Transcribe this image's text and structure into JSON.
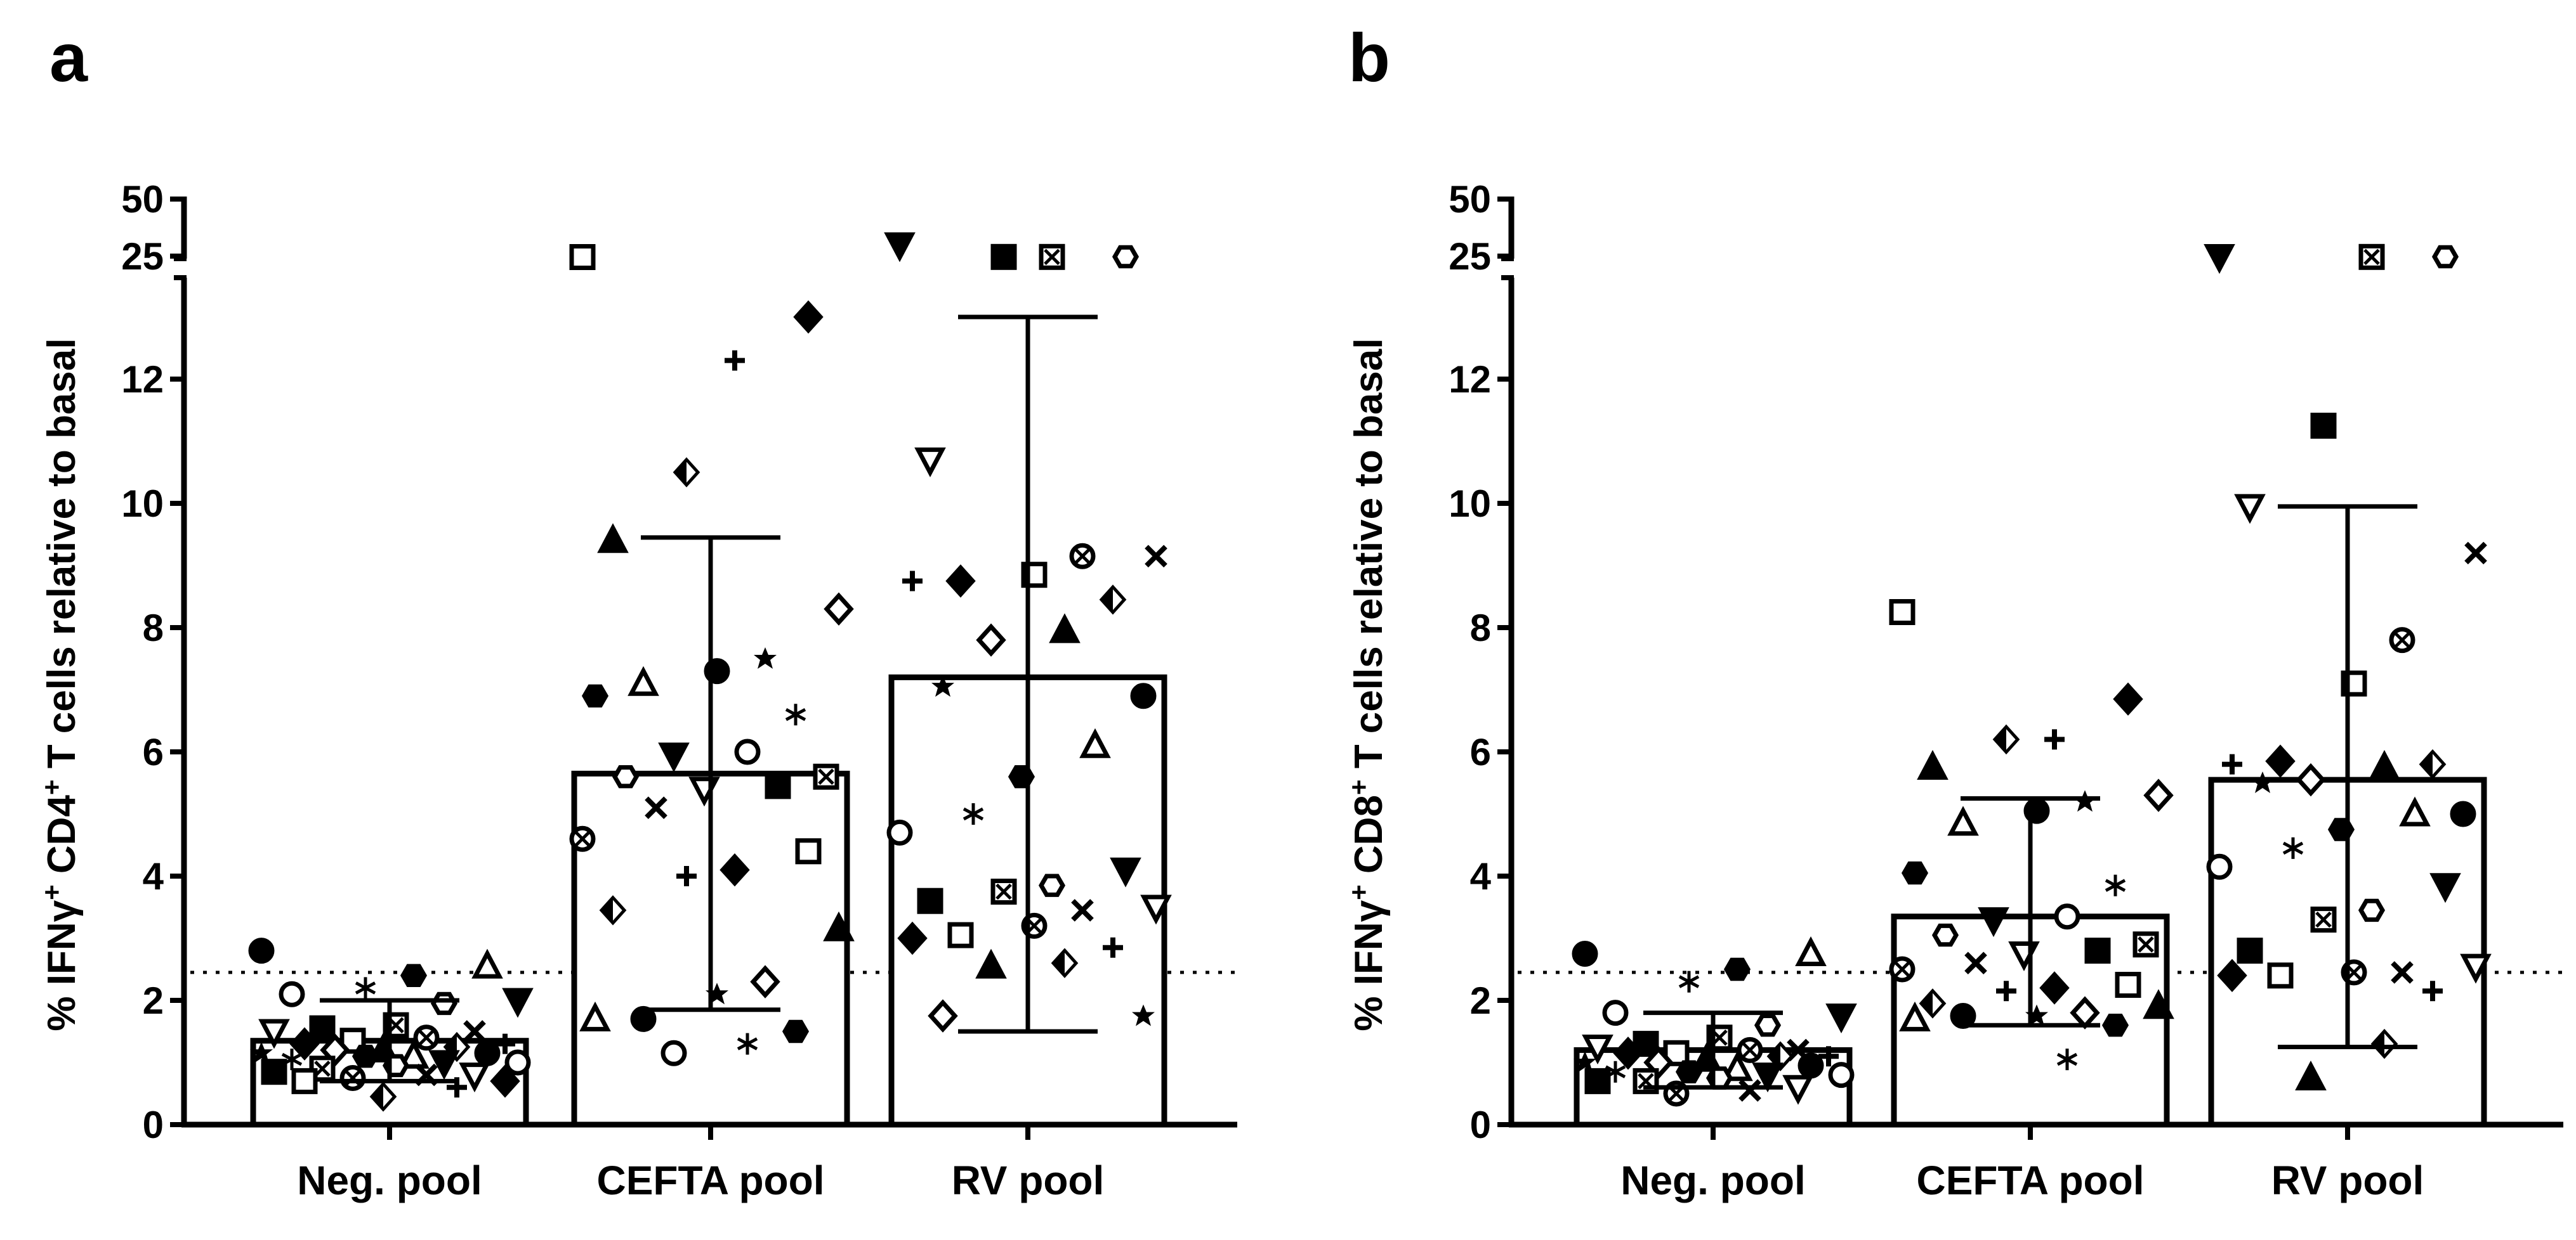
{
  "chart_data": [
    {
      "panel": "a",
      "type": "bar",
      "categories": [
        "Neg. pool",
        "CEFTA pool",
        "RV pool"
      ],
      "ylabel_parts": [
        "% IFNγ",
        "+",
        " CD4",
        "+",
        " T cells relative to basal"
      ],
      "yticks_lower": [
        "0",
        "2",
        "4",
        "6",
        "8",
        "10",
        "12"
      ],
      "yticks_upper": [
        "25",
        "50"
      ],
      "ylim_lower": [
        0,
        13
      ],
      "ylim_upper": [
        25,
        50
      ],
      "threshold": 2.45,
      "means": [
        1.35,
        5.65,
        7.2
      ],
      "sd_high": [
        2.0,
        9.45,
        13.0
      ],
      "sd_low": [
        0.7,
        1.85,
        1.5
      ],
      "points": [
        [
          2.8,
          2.55,
          2.4,
          2.2,
          2.1,
          2.0,
          1.95,
          1.6,
          1.55,
          1.5,
          1.5,
          1.4,
          1.35,
          1.3,
          1.3,
          1.25,
          1.2,
          1.2,
          1.15,
          1.15,
          1.1,
          1.1,
          1.05,
          1.0,
          1.0,
          0.95,
          0.9,
          0.85,
          0.8,
          0.8,
          0.75,
          0.7,
          0.7,
          0.6,
          0.45
        ],
        [
          22,
          13,
          12.3,
          10.5,
          9.4,
          8.3,
          7.5,
          7.3,
          7.1,
          6.9,
          6.6,
          6.0,
          5.95,
          5.6,
          5.6,
          5.45,
          5.4,
          5.1,
          4.6,
          4.4,
          4.1,
          4.0,
          3.45,
          3.15,
          2.3,
          2.1,
          1.7,
          1.7,
          1.5,
          1.3,
          1.15
        ],
        [
          30,
          23,
          22.5,
          22.5,
          10.7,
          9.15,
          9.15,
          8.85,
          8.75,
          8.75,
          8.45,
          7.95,
          7.8,
          7.05,
          6.9,
          6.1,
          5.6,
          5.0,
          4.7,
          4.1,
          3.85,
          3.75,
          3.6,
          3.5,
          3.45,
          3.2,
          3.05,
          3.0,
          2.85,
          2.6,
          2.55,
          1.75,
          1.75
        ]
      ]
    },
    {
      "panel": "b",
      "type": "bar",
      "categories": [
        "Neg. pool",
        "CEFTA pool",
        "RV pool"
      ],
      "ylabel_parts": [
        "% IFNγ",
        "+",
        " CD8",
        "+",
        " T cells relative to basal"
      ],
      "yticks_lower": [
        "0",
        "2",
        "4",
        "6",
        "8",
        "10",
        "12"
      ],
      "yticks_upper": [
        "25",
        "50"
      ],
      "ylim_lower": [
        0,
        13
      ],
      "ylim_upper": [
        25,
        50
      ],
      "threshold": 2.45,
      "means": [
        1.2,
        3.35,
        5.55
      ],
      "sd_high": [
        1.8,
        5.25,
        9.95
      ],
      "sd_low": [
        0.6,
        1.6,
        1.25
      ],
      "points": [
        [
          2.75,
          2.75,
          2.5,
          2.3,
          1.8,
          1.75,
          1.6,
          1.4,
          1.3,
          1.25,
          1.2,
          1.2,
          1.15,
          1.15,
          1.1,
          1.1,
          1.05,
          1.0,
          1.0,
          0.95,
          0.9,
          0.85,
          0.85,
          0.8,
          0.8,
          0.75,
          0.7,
          0.7,
          0.6,
          0.55,
          0.5
        ],
        [
          8.25,
          6.85,
          6.2,
          6.2,
          5.75,
          5.3,
          5.2,
          5.05,
          4.85,
          4.05,
          3.85,
          3.35,
          3.3,
          3.05,
          2.9,
          2.8,
          2.75,
          2.6,
          2.5,
          2.25,
          2.2,
          2.15,
          1.95,
          1.9,
          1.8,
          1.75,
          1.75,
          1.7,
          1.6,
          1.05
        ],
        [
          24,
          23,
          22.5,
          11.25,
          9.95,
          9.2,
          7.8,
          7.1,
          5.85,
          5.8,
          5.8,
          5.75,
          5.55,
          5.5,
          5.0,
          5.0,
          4.75,
          4.45,
          4.15,
          3.85,
          3.45,
          3.3,
          2.8,
          2.55,
          2.45,
          2.45,
          2.4,
          2.4,
          2.15,
          1.3,
          0.75
        ]
      ]
    }
  ]
}
